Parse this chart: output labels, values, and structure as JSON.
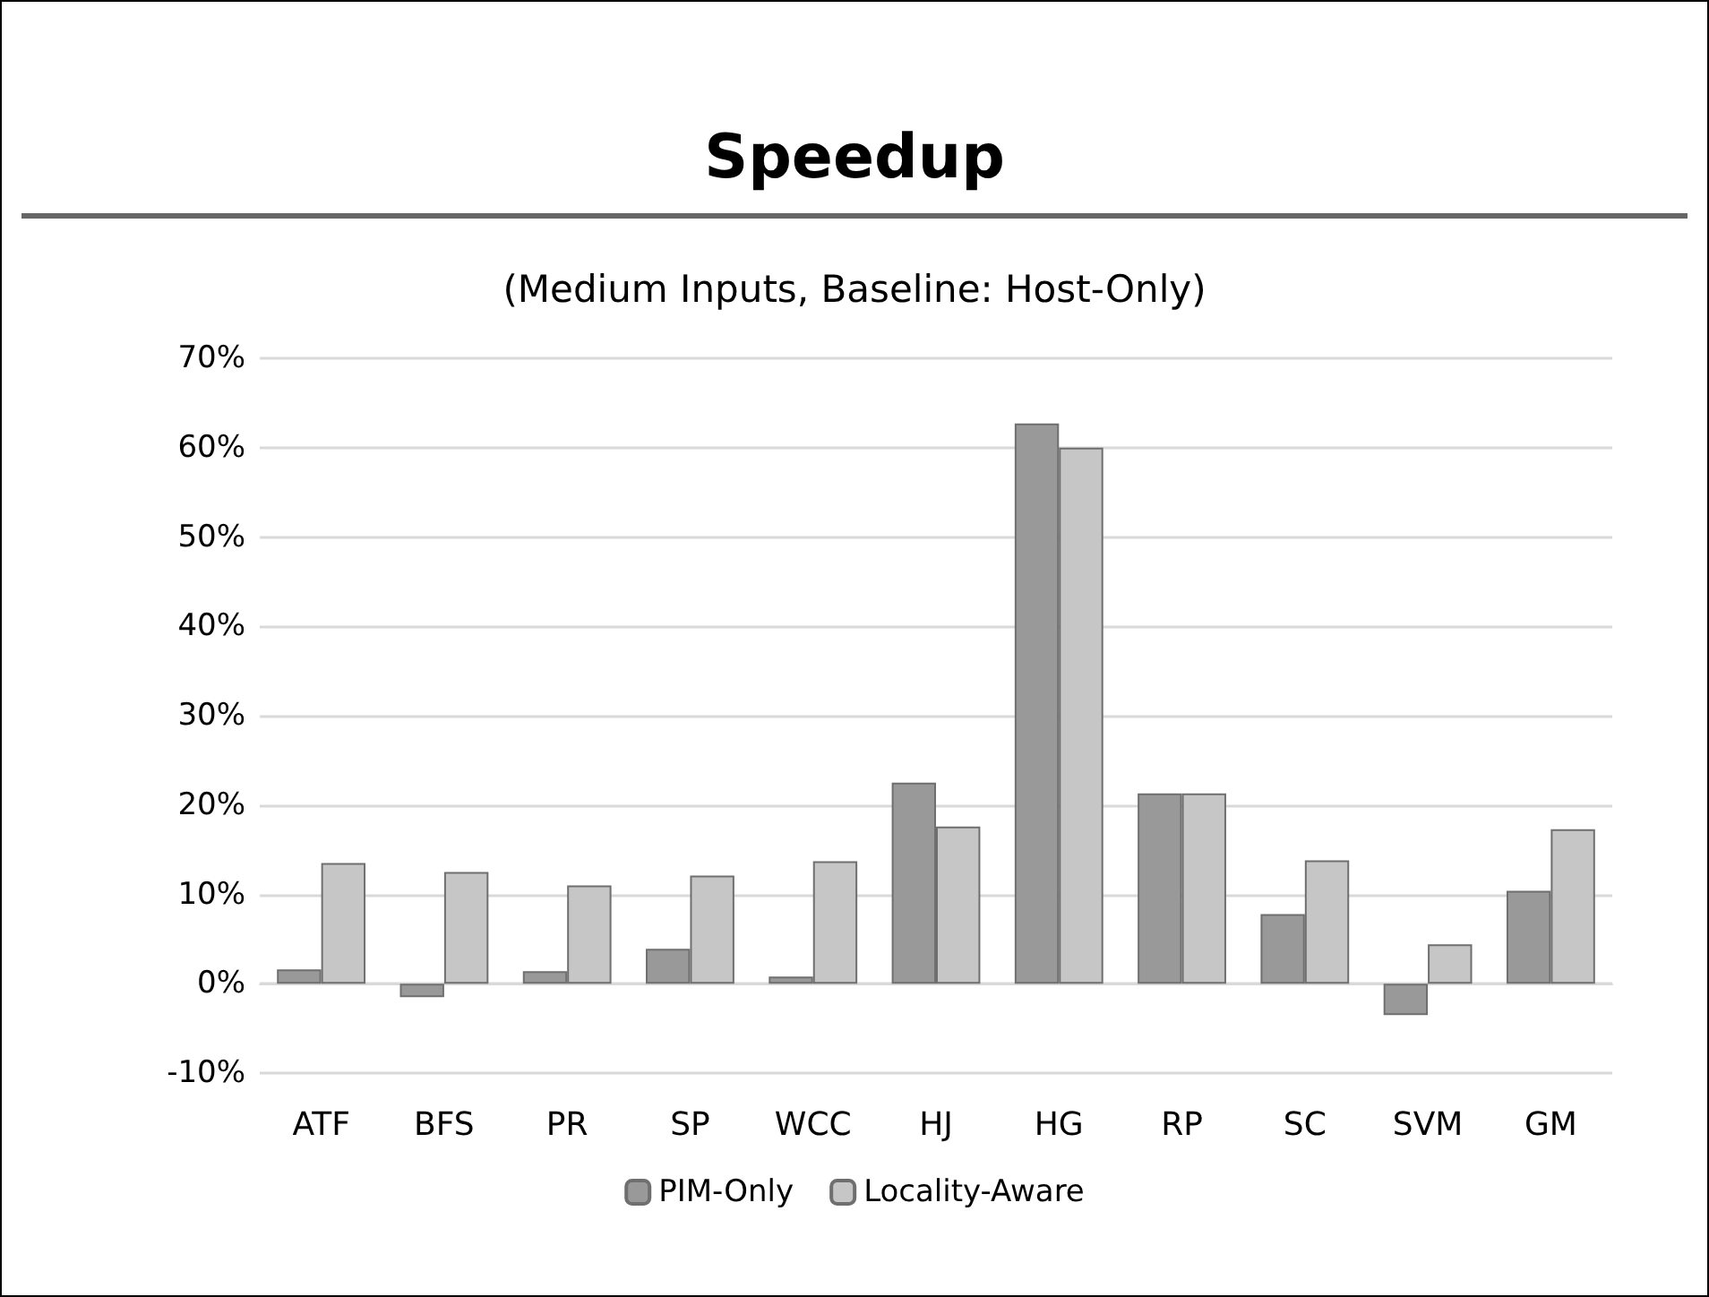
{
  "chart_data": {
    "type": "bar",
    "title": "Speedup",
    "subtitle": "(Medium Inputs, Baseline: Host-Only)",
    "categories": [
      "ATF",
      "BFS",
      "PR",
      "SP",
      "WCC",
      "HJ",
      "HG",
      "RP",
      "SC",
      "SVM",
      "GM"
    ],
    "series": [
      {
        "name": "PIM-Only",
        "color": "#999999",
        "values": [
          1.6,
          -1.5,
          1.4,
          3.9,
          0.8,
          22.5,
          62.7,
          21.3,
          7.8,
          -3.5,
          10.4
        ]
      },
      {
        "name": "Locality-Aware",
        "color": "#c6c6c6",
        "values": [
          13.5,
          12.5,
          11.0,
          12.1,
          13.7,
          17.6,
          60.0,
          21.3,
          13.8,
          4.4,
          17.3
        ]
      }
    ],
    "ylim": [
      -10,
      70
    ],
    "yticks": [
      {
        "value": -10,
        "label": "-10%"
      },
      {
        "value": 0,
        "label": "0%"
      },
      {
        "value": 10,
        "label": "10%"
      },
      {
        "value": 20,
        "label": "20%"
      },
      {
        "value": 30,
        "label": "30%"
      },
      {
        "value": 40,
        "label": "40%"
      },
      {
        "value": 50,
        "label": "50%"
      },
      {
        "value": 60,
        "label": "60%"
      },
      {
        "value": 70,
        "label": "70%"
      }
    ],
    "grid": "y",
    "legend": "bottom"
  }
}
